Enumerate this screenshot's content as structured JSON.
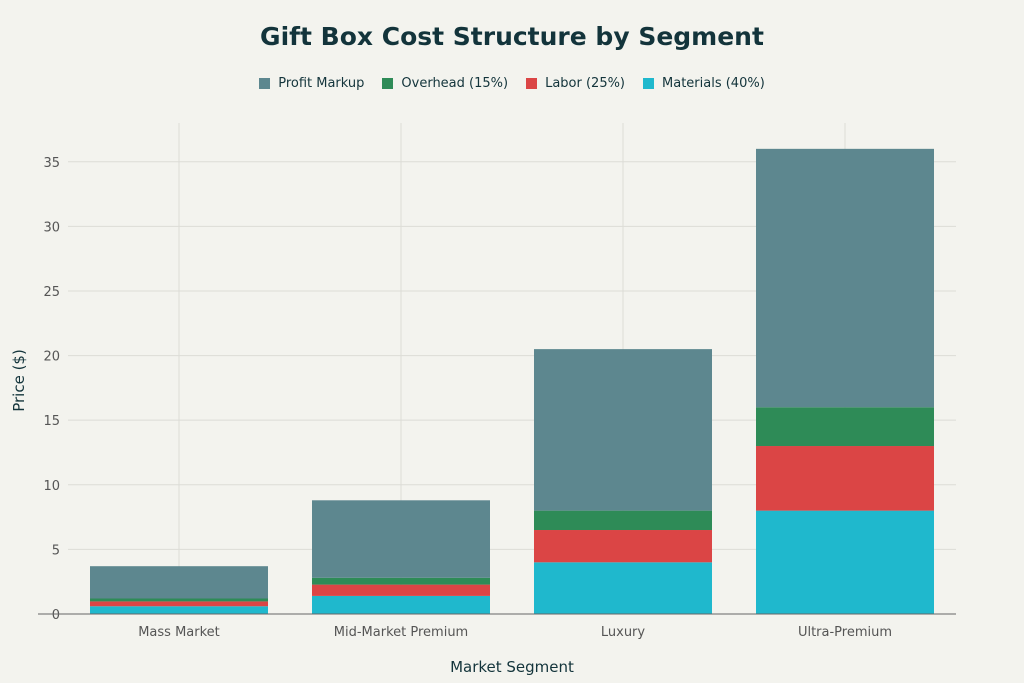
{
  "chart_data": {
    "type": "bar",
    "stacked": true,
    "title": "Gift Box Cost Structure by Segment",
    "xlabel": "Market Segment",
    "ylabel": "Price ($)",
    "ylim": [
      0,
      38
    ],
    "yticks": [
      0,
      5,
      10,
      15,
      20,
      25,
      30,
      35
    ],
    "grid": true,
    "legend_position": "top",
    "categories": [
      "Mass Market",
      "Mid-Market Premium",
      "Luxury",
      "Ultra-Premium"
    ],
    "series": [
      {
        "name": "Materials (40%)",
        "color": "#1FB8CD",
        "values": [
          0.6,
          1.4,
          4.0,
          8.0
        ]
      },
      {
        "name": "Labor (25%)",
        "color": "#DB4545",
        "values": [
          0.375,
          0.875,
          2.5,
          5.0
        ]
      },
      {
        "name": "Overhead (15%)",
        "color": "#2E8B57",
        "values": [
          0.225,
          0.525,
          1.5,
          3.0
        ]
      },
      {
        "name": "Profit Markup",
        "color": "#5D878F",
        "values": [
          2.5,
          6.0,
          12.5,
          20.0
        ]
      }
    ],
    "legend_order": [
      3,
      2,
      1,
      0
    ]
  }
}
